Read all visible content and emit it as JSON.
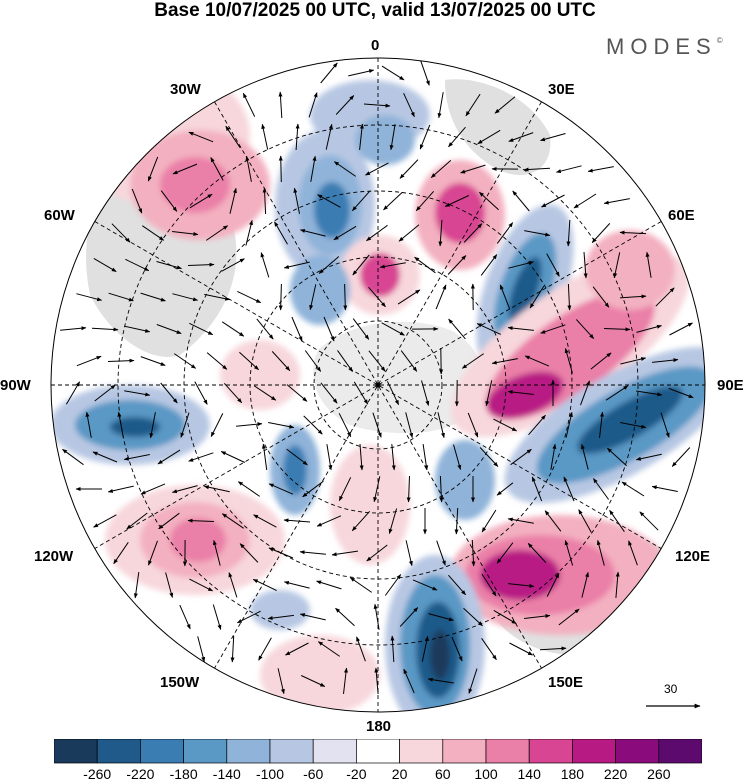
{
  "title": "Base 10/07/2025 00 UTC, valid 13/07/2025 00 UTC",
  "brand": "MODES",
  "brand_mark": "©",
  "longitude_labels": {
    "north": "0",
    "n30e": "30E",
    "n60e": "60E",
    "east": "90E",
    "s120e": "120E",
    "s150e": "150E",
    "south": "180",
    "s150w": "150W",
    "s120w": "120W",
    "west": "90W",
    "n60w": "60W",
    "n30w": "30W"
  },
  "reference_vector": {
    "label": "30"
  },
  "colorbar": {
    "labels": [
      "-260",
      "-220",
      "-180",
      "-140",
      "-100",
      "-60",
      "-20",
      "20",
      "60",
      "100",
      "140",
      "180",
      "220",
      "260"
    ],
    "colors": [
      "#1a3a5c",
      "#1f5a8a",
      "#3a7db3",
      "#5a98c5",
      "#8fb3d9",
      "#b7c7e3",
      "#e2e2f0",
      "#ffffff",
      "#f7d7dc",
      "#f3b0c0",
      "#ea7fa7",
      "#d84592",
      "#b81a84",
      "#8a0c7c",
      "#5c0a6e"
    ]
  },
  "map": {
    "projection": "south-polar-stereographic",
    "field": "geopotential height anomaly with wind vectors"
  }
}
